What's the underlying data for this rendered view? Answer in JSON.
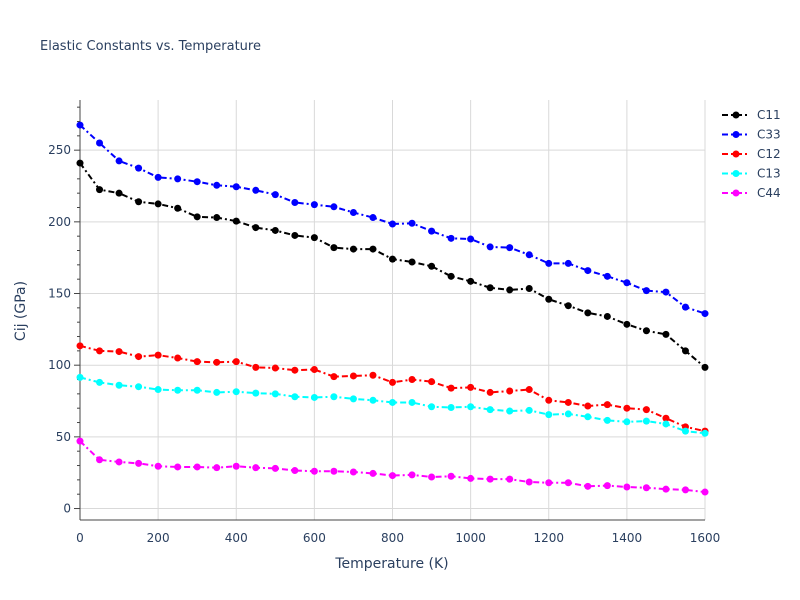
{
  "chart_data": {
    "type": "line",
    "title": "Elastic Constants vs. Temperature",
    "xlabel": "Temperature (K)",
    "ylabel": "Cij (GPa)",
    "xlim": [
      0,
      1600
    ],
    "ylim": [
      -8,
      285
    ],
    "x_ticks": [
      0,
      200,
      400,
      600,
      800,
      1000,
      1200,
      1400,
      1600
    ],
    "y_ticks": [
      0,
      50,
      100,
      150,
      200,
      250
    ],
    "grid": true,
    "legend_position": "top-right",
    "line_style": "dash-dot with circle markers",
    "x": [
      0,
      50,
      100,
      150,
      200,
      250,
      300,
      350,
      400,
      450,
      500,
      550,
      600,
      650,
      700,
      750,
      800,
      850,
      900,
      950,
      1000,
      1050,
      1100,
      1150,
      1200,
      1250,
      1300,
      1350,
      1400,
      1450,
      1500,
      1550,
      1600
    ],
    "series": [
      {
        "name": "C11",
        "color": "#000000",
        "values": [
          241,
          222.5,
          220,
          214,
          212.5,
          209.5,
          203.5,
          203,
          200.5,
          196,
          194,
          190.5,
          189,
          182,
          181,
          181,
          174,
          172,
          169,
          162,
          158.5,
          154,
          152.5,
          153.5,
          146,
          141.5,
          136.5,
          134,
          128.5,
          124,
          121.5,
          110,
          98.5
        ]
      },
      {
        "name": "C33",
        "color": "#0000ff",
        "values": [
          267.5,
          255,
          242.5,
          237.5,
          231,
          230,
          228,
          225.5,
          224.5,
          222,
          219,
          213.5,
          212,
          210.5,
          206.5,
          203,
          198.5,
          199,
          193.5,
          188.5,
          188,
          182.5,
          182,
          177,
          171,
          171,
          166,
          162,
          157.5,
          152,
          151,
          140.5,
          136
        ]
      },
      {
        "name": "C12",
        "color": "#ff0000",
        "values": [
          113.5,
          110,
          109.5,
          106,
          107,
          105,
          102.5,
          102,
          102.5,
          98.5,
          98,
          96.5,
          97,
          92,
          92.5,
          93,
          88,
          90,
          88.5,
          84,
          84.5,
          81,
          82,
          83,
          75.5,
          74,
          71.5,
          72.5,
          70,
          69,
          63,
          57,
          54
        ]
      },
      {
        "name": "C13",
        "color": "#00ffff",
        "values": [
          91.5,
          88,
          86,
          85,
          83,
          82.5,
          82.5,
          81,
          81.5,
          80.5,
          80,
          78,
          77.5,
          78,
          76.5,
          75.5,
          74,
          74,
          71,
          70.5,
          71,
          69,
          68,
          68.5,
          65.5,
          66,
          64,
          61.5,
          60.5,
          61,
          59,
          54,
          52.5
        ]
      },
      {
        "name": "C44",
        "color": "#ff00ff",
        "values": [
          47,
          34,
          32.5,
          31.5,
          29.5,
          29,
          29,
          28.5,
          29.5,
          28.5,
          28,
          26.5,
          26,
          26,
          25.5,
          24.5,
          23,
          23.5,
          22,
          22.5,
          21,
          20.5,
          20.5,
          18.5,
          18,
          18,
          15.5,
          16,
          15,
          14.5,
          13.5,
          13,
          11.5
        ]
      }
    ]
  }
}
